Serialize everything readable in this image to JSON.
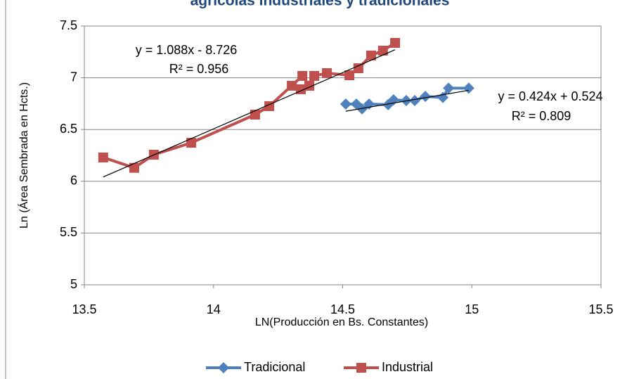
{
  "chart_data": {
    "type": "scatter-line",
    "title": "agrícolas industriales y tradicionales",
    "x_label": "LN(Producción en Bs. Constantes)",
    "y_label": "Ln (Área Sembrada en Hcts.)",
    "xlim": [
      13.5,
      15.5
    ],
    "xticks": [
      13.5,
      14,
      14.5,
      15,
      15.5
    ],
    "ylim": [
      5,
      7.5
    ],
    "yticks": [
      5,
      5.5,
      6,
      6.5,
      7,
      7.5
    ],
    "grid": true,
    "legend": "bottom",
    "series": [
      {
        "name": "Tradicional",
        "color": "#4f81bd",
        "marker": "diamond",
        "x": [
          14.512,
          14.553,
          14.575,
          14.602,
          14.676,
          14.697,
          14.746,
          14.779,
          14.82,
          14.888,
          14.91,
          14.988
        ],
        "values": [
          6.746,
          6.746,
          6.7,
          6.746,
          6.74,
          6.787,
          6.78,
          6.78,
          6.82,
          6.81,
          6.9,
          6.9
        ],
        "trendline": {
          "slope": 0.424,
          "intercept": 0.524,
          "label": "y = 0.424x + 0.524",
          "r2_label": "R² = 0.809"
        }
      },
      {
        "name": "Industrial",
        "color": "#c0504d",
        "marker": "square",
        "x": [
          13.573,
          13.693,
          13.769,
          13.914,
          14.161,
          14.216,
          14.344,
          14.303,
          14.338,
          14.371,
          14.39,
          14.439,
          14.526,
          14.561,
          14.61,
          14.656,
          14.703
        ],
        "values": [
          6.23,
          6.13,
          6.257,
          6.372,
          6.644,
          6.726,
          7.018,
          6.923,
          6.889,
          6.923,
          7.018,
          7.045,
          7.024,
          7.092,
          7.215,
          7.262,
          7.337
        ],
        "trendline": {
          "slope": 1.088,
          "intercept": -8.726,
          "label": "y = 1.088x - 8.726",
          "r2_label": "R² = 0.956"
        }
      }
    ]
  }
}
